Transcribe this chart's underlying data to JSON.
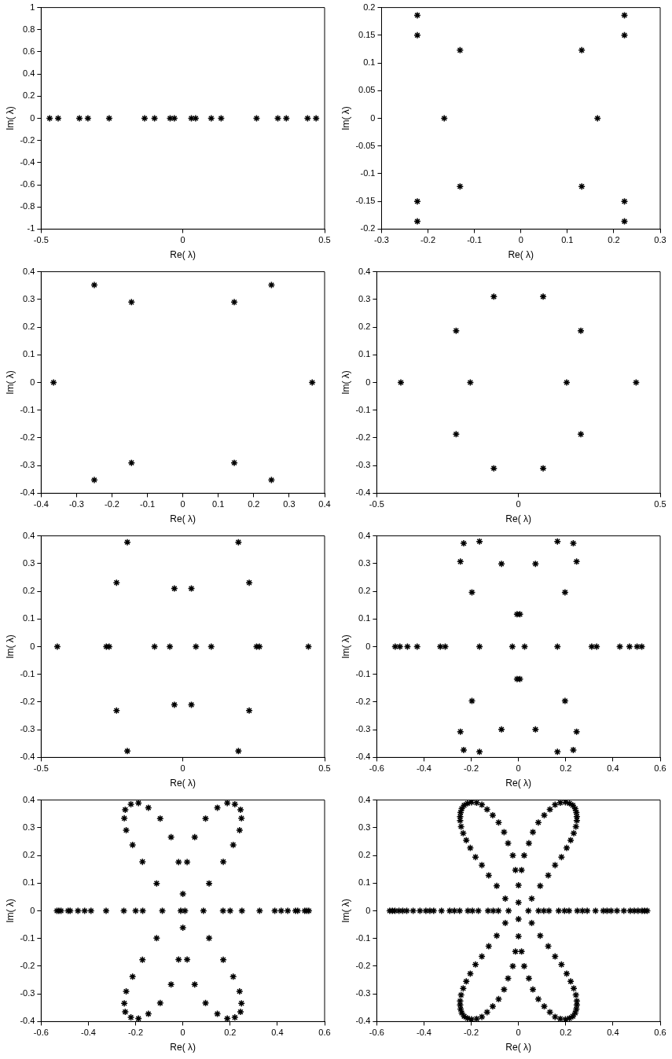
{
  "chart_data": [
    {
      "type": "scatter",
      "xlabel": "Re( λ)",
      "ylabel": "Im( λ)",
      "marker": "cross",
      "color": "#000000",
      "grid": false,
      "xlim": [
        -0.5,
        0.5
      ],
      "xticks": [
        -0.5,
        0,
        0.5
      ],
      "ylim": [
        -1,
        1
      ],
      "yticks": [
        -1,
        -0.8,
        -0.6,
        -0.4,
        -0.2,
        0,
        0.2,
        0.4,
        0.6,
        0.8,
        1
      ],
      "x": [
        -0.47,
        -0.44,
        -0.365,
        -0.335,
        -0.26,
        -0.135,
        -0.1,
        -0.045,
        -0.03,
        0.03,
        0.045,
        0.1,
        0.135,
        0.26,
        0.335,
        0.365,
        0.44,
        0.47
      ],
      "values": [
        0,
        0,
        0,
        0,
        0,
        0,
        0,
        0,
        0,
        0,
        0,
        0,
        0,
        0,
        0,
        0,
        0,
        0
      ]
    },
    {
      "type": "scatter",
      "xlabel": "Re( λ)",
      "ylabel": "Im( λ)",
      "marker": "cross",
      "color": "#000000",
      "grid": false,
      "xlim": [
        -0.3,
        0.3
      ],
      "xticks": [
        -0.3,
        -0.2,
        -0.1,
        0,
        0.1,
        0.2,
        0.3
      ],
      "ylim": [
        -0.2,
        0.2
      ],
      "yticks": [
        -0.2,
        -0.15,
        -0.1,
        -0.05,
        0,
        0.05,
        0.1,
        0.15,
        0.2
      ],
      "x": [
        -0.223,
        -0.223,
        -0.131,
        -0.165,
        -0.131,
        -0.223,
        -0.223,
        0.223,
        0.223,
        0.131,
        0.165,
        0.131,
        0.223,
        0.223
      ],
      "values": [
        0.186,
        0.15,
        0.123,
        0,
        -0.123,
        -0.15,
        -0.186,
        0.186,
        0.15,
        0.123,
        0,
        -0.123,
        -0.15,
        -0.186
      ]
    },
    {
      "type": "scatter",
      "xlabel": "Re( λ)",
      "ylabel": "Im( λ)",
      "marker": "cross",
      "color": "#000000",
      "grid": false,
      "xlim": [
        -0.4,
        0.4
      ],
      "xticks": [
        -0.4,
        -0.3,
        -0.2,
        -0.1,
        0,
        0.1,
        0.2,
        0.3,
        0.4
      ],
      "ylim": [
        -0.4,
        0.4
      ],
      "yticks": [
        -0.4,
        -0.3,
        -0.2,
        -0.1,
        0,
        0.1,
        0.2,
        0.3,
        0.4
      ],
      "x": [
        -0.365,
        -0.25,
        -0.145,
        -0.145,
        -0.25,
        0.365,
        0.25,
        0.145,
        0.145,
        0.25
      ],
      "values": [
        0,
        0.352,
        0.29,
        -0.29,
        -0.352,
        0,
        0.352,
        0.29,
        -0.29,
        -0.352
      ]
    },
    {
      "type": "scatter",
      "xlabel": "Re( λ)",
      "ylabel": "Im( λ)",
      "marker": "cross",
      "color": "#000000",
      "grid": false,
      "xlim": [
        -0.5,
        0.5
      ],
      "xticks": [
        -0.5,
        0,
        0.5
      ],
      "ylim": [
        -0.4,
        0.4
      ],
      "yticks": [
        -0.4,
        -0.3,
        -0.2,
        -0.1,
        0,
        0.1,
        0.2,
        0.3,
        0.4
      ],
      "x": [
        -0.415,
        -0.17,
        -0.22,
        -0.087,
        -0.087,
        -0.22,
        0.415,
        0.17,
        0.22,
        0.087,
        0.087,
        0.22
      ],
      "values": [
        0,
        0,
        0.187,
        0.31,
        -0.31,
        -0.187,
        0,
        0,
        0.187,
        0.31,
        -0.31,
        -0.187
      ]
    },
    {
      "type": "scatter",
      "xlabel": "Re( λ)",
      "ylabel": "Im( λ)",
      "marker": "cross",
      "color": "#000000",
      "grid": false,
      "xlim": [
        -0.5,
        0.5
      ],
      "xticks": [
        -0.5,
        0,
        0.5
      ],
      "ylim": [
        -0.4,
        0.4
      ],
      "yticks": [
        -0.4,
        -0.3,
        -0.2,
        -0.1,
        0,
        0.1,
        0.2,
        0.3,
        0.4
      ],
      "x": [
        -0.443,
        -0.27,
        -0.26,
        -0.1,
        -0.046,
        0.046,
        0.1,
        0.26,
        0.27,
        0.443,
        -0.196,
        -0.234,
        -0.03,
        0.03,
        0.234,
        0.196,
        -0.196,
        -0.234,
        -0.03,
        0.03,
        0.234,
        0.196
      ],
      "values": [
        0,
        0,
        0,
        0,
        0,
        0,
        0,
        0,
        0,
        0,
        0.377,
        0.231,
        0.21,
        0.21,
        0.231,
        0.377,
        -0.377,
        -0.231,
        -0.21,
        -0.21,
        -0.231,
        -0.377
      ]
    },
    {
      "type": "scatter",
      "xlabel": "Re( λ)",
      "ylabel": "Im( λ)",
      "marker": "cross",
      "color": "#000000",
      "grid": false,
      "xlim": [
        -0.6,
        0.6
      ],
      "xticks": [
        -0.6,
        -0.4,
        -0.2,
        0,
        0.2,
        0.4,
        0.6
      ],
      "ylim": [
        -0.4,
        0.4
      ],
      "yticks": [
        -0.4,
        -0.3,
        -0.2,
        -0.1,
        0,
        0.1,
        0.2,
        0.3,
        0.4
      ],
      "x": [
        -0.522,
        -0.502,
        -0.47,
        -0.429,
        -0.331,
        -0.31,
        -0.165,
        -0.026,
        0.026,
        0.165,
        0.31,
        0.331,
        0.429,
        0.47,
        0.502,
        0.522,
        -0.232,
        -0.165,
        -0.246,
        -0.072,
        -0.197,
        -0.006,
        0.232,
        0.165,
        0.246,
        0.072,
        0.197,
        0.006,
        -0.232,
        -0.165,
        -0.246,
        -0.072,
        -0.197,
        -0.006,
        0.232,
        0.165,
        0.246,
        0.072,
        0.197,
        0.006
      ],
      "values": [
        0,
        0,
        0,
        0,
        0,
        0,
        0,
        0,
        0,
        0,
        0,
        0,
        0,
        0,
        0,
        0,
        0.373,
        0.38,
        0.307,
        0.299,
        0.196,
        0.117,
        0.373,
        0.38,
        0.307,
        0.299,
        0.196,
        0.117,
        -0.373,
        -0.38,
        -0.307,
        -0.299,
        -0.196,
        -0.117,
        -0.373,
        -0.38,
        -0.307,
        -0.299,
        -0.196,
        -0.117
      ]
    },
    {
      "type": "scatter",
      "xlabel": "Re( λ)",
      "ylabel": "Im( λ)",
      "marker": "cross",
      "color": "#000000",
      "grid": false,
      "xlim": [
        -0.6,
        0.6
      ],
      "xticks": [
        -0.6,
        -0.4,
        -0.2,
        0,
        0.2,
        0.4,
        0.6
      ],
      "ylim": [
        -0.4,
        0.4
      ],
      "yticks": [
        -0.4,
        -0.3,
        -0.2,
        -0.1,
        0,
        0.1,
        0.2,
        0.3,
        0.4
      ],
      "x": [
        -0.533,
        -0.525,
        -0.516,
        -0.486,
        -0.477,
        -0.444,
        -0.416,
        -0.389,
        -0.325,
        -0.25,
        -0.2,
        -0.17,
        -0.087,
        -0.009,
        0.009,
        0.087,
        0.17,
        0.2,
        0.25,
        0.325,
        0.389,
        0.416,
        0.444,
        0.477,
        0.486,
        0.516,
        0.525,
        0.533,
        -0.244,
        -0.248,
        -0.22,
        -0.188,
        -0.146,
        -0.24,
        -0.213,
        -0.171,
        -0.096,
        -0.05,
        -0.111,
        -0.018,
        0.244,
        0.248,
        0.22,
        0.188,
        0.146,
        0.24,
        0.213,
        0.171,
        0.096,
        0.05,
        0.111,
        0.018,
        -0.244,
        -0.248,
        -0.22,
        -0.188,
        -0.146,
        -0.24,
        -0.213,
        -0.171,
        -0.096,
        -0.05,
        -0.111,
        -0.018,
        0.244,
        0.248,
        0.22,
        0.188,
        0.146,
        0.24,
        0.213,
        0.171,
        0.096,
        0.05,
        0.111,
        0.018,
        0,
        0
      ],
      "values": [
        0,
        0,
        0,
        0,
        0,
        0,
        0,
        0,
        0,
        0,
        0,
        0,
        0,
        0,
        0,
        0,
        0,
        0,
        0,
        0,
        0,
        0,
        0,
        0,
        0,
        0,
        0,
        0,
        0.365,
        0.334,
        0.385,
        0.389,
        0.372,
        0.291,
        0.238,
        0.177,
        0.333,
        0.266,
        0.099,
        0.176,
        0.365,
        0.334,
        0.385,
        0.389,
        0.372,
        0.291,
        0.238,
        0.177,
        0.333,
        0.266,
        0.099,
        0.176,
        -0.365,
        -0.334,
        -0.385,
        -0.389,
        -0.372,
        -0.291,
        -0.238,
        -0.177,
        -0.333,
        -0.266,
        -0.099,
        -0.176,
        -0.365,
        -0.334,
        -0.385,
        -0.389,
        -0.372,
        -0.291,
        -0.238,
        -0.177,
        -0.333,
        -0.266,
        -0.099,
        -0.176,
        0.061,
        -0.061
      ]
    },
    {
      "type": "scatter",
      "xlabel": "Re( λ)",
      "ylabel": "Im( λ)",
      "marker": "cross",
      "color": "#000000",
      "grid": false,
      "xlim": [
        -0.6,
        0.6
      ],
      "xticks": [
        -0.6,
        -0.4,
        -0.2,
        0,
        0.2,
        0.4,
        0.6
      ],
      "ylim": [
        -0.4,
        0.4
      ],
      "yticks": [
        -0.4,
        -0.3,
        -0.2,
        -0.1,
        0,
        0.1,
        0.2,
        0.3,
        0.4
      ],
      "x": [
        -0.545,
        -0.534,
        -0.523,
        -0.506,
        -0.49,
        -0.473,
        -0.446,
        -0.417,
        -0.392,
        -0.375,
        -0.359,
        -0.326,
        -0.291,
        -0.271,
        -0.249,
        -0.214,
        -0.195,
        -0.17,
        -0.129,
        -0.107,
        -0.085,
        -0.042,
        0.042,
        0.085,
        0.107,
        0.129,
        0.17,
        0.195,
        0.214,
        0.249,
        0.271,
        0.291,
        0.326,
        0.359,
        0.375,
        0.392,
        0.417,
        0.446,
        0.473,
        0.49,
        0.506,
        0.523,
        0.534,
        0.545,
        -0.013,
        -0.024,
        -0.044,
        -0.061,
        -0.084,
        -0.109,
        -0.133,
        -0.155,
        -0.177,
        -0.199,
        -0.216,
        -0.23,
        -0.24,
        -0.245,
        -0.247,
        -0.247,
        -0.243,
        -0.234,
        -0.221,
        -0.204,
        -0.182,
        -0.155,
        -0.126,
        -0.092,
        -0.056,
        0.013,
        0.024,
        0.044,
        0.061,
        0.084,
        0.109,
        0.133,
        0.155,
        0.177,
        0.199,
        0.216,
        0.23,
        0.24,
        0.245,
        0.247,
        0.247,
        0.243,
        0.234,
        0.221,
        0.204,
        0.182,
        0.155,
        0.126,
        0.092,
        0.056,
        -0.013,
        -0.024,
        -0.044,
        -0.061,
        -0.084,
        -0.109,
        -0.133,
        -0.155,
        -0.177,
        -0.199,
        -0.216,
        -0.23,
        -0.24,
        -0.245,
        -0.247,
        -0.247,
        -0.243,
        -0.234,
        -0.221,
        -0.204,
        -0.182,
        -0.155,
        -0.126,
        -0.092,
        -0.056,
        0.013,
        0.024,
        0.044,
        0.061,
        0.084,
        0.109,
        0.133,
        0.155,
        0.177,
        0.199,
        0.216,
        0.23,
        0.24,
        0.245,
        0.247,
        0.247,
        0.243,
        0.234,
        0.221,
        0.204,
        0.182,
        0.155,
        0.126,
        0.092,
        0.056,
        0,
        0,
        0,
        0
      ],
      "values": [
        0,
        0,
        0,
        0,
        0,
        0,
        0,
        0,
        0,
        0,
        0,
        0,
        0,
        0,
        0,
        0,
        0,
        0,
        0,
        0,
        0,
        0,
        0,
        0,
        0,
        0,
        0,
        0,
        0,
        0,
        0,
        0,
        0,
        0,
        0,
        0,
        0,
        0,
        0,
        0,
        0,
        0,
        0,
        0,
        0.147,
        0.2,
        0.244,
        0.284,
        0.319,
        0.345,
        0.366,
        0.383,
        0.39,
        0.392,
        0.388,
        0.381,
        0.369,
        0.355,
        0.34,
        0.326,
        0.304,
        0.28,
        0.255,
        0.227,
        0.194,
        0.165,
        0.128,
        0.09,
        0.044,
        0.147,
        0.2,
        0.244,
        0.284,
        0.319,
        0.345,
        0.366,
        0.383,
        0.39,
        0.392,
        0.388,
        0.381,
        0.369,
        0.355,
        0.34,
        0.326,
        0.304,
        0.28,
        0.255,
        0.227,
        0.194,
        0.165,
        0.128,
        0.09,
        0.044,
        -0.147,
        -0.2,
        -0.244,
        -0.284,
        -0.319,
        -0.345,
        -0.366,
        -0.383,
        -0.39,
        -0.392,
        -0.388,
        -0.381,
        -0.369,
        -0.355,
        -0.34,
        -0.326,
        -0.304,
        -0.28,
        -0.255,
        -0.227,
        -0.194,
        -0.165,
        -0.128,
        -0.09,
        -0.044,
        -0.147,
        -0.2,
        -0.244,
        -0.284,
        -0.319,
        -0.345,
        -0.366,
        -0.383,
        -0.39,
        -0.392,
        -0.388,
        -0.381,
        -0.369,
        -0.355,
        -0.34,
        -0.326,
        -0.304,
        -0.28,
        -0.255,
        -0.227,
        -0.194,
        -0.165,
        -0.128,
        -0.09,
        -0.044,
        0.03,
        0.092,
        -0.03,
        -0.092
      ]
    }
  ]
}
